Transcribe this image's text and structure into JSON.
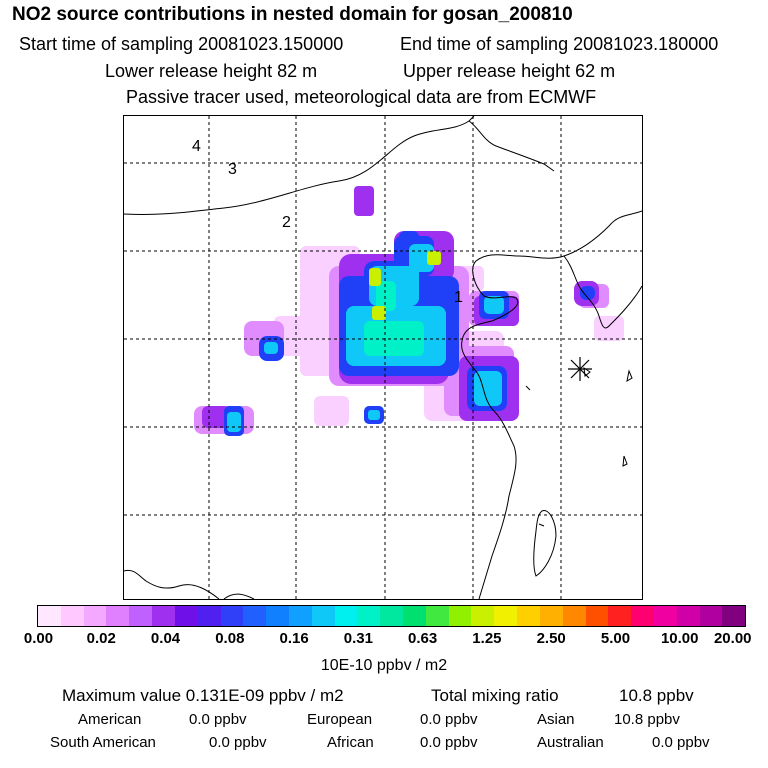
{
  "title": "NO2 source contributions in nested domain for gosan_200810",
  "header": {
    "start_label": "Start time of sampling 20081023.150000",
    "end_label": "End time of sampling 20081023.180000",
    "lower_label": "Lower release height   82 m",
    "upper_label": "Upper release height   62 m",
    "note": "Passive tracer used, meteorological data are from ECMWF"
  },
  "map": {
    "markers": [
      "4",
      "3",
      "2",
      "1"
    ],
    "station_symbol": "*"
  },
  "legend": {
    "colors": [
      "#ffe8ff",
      "#ffc8ff",
      "#f4a8ff",
      "#e080ff",
      "#c060ff",
      "#a030f0",
      "#7010e8",
      "#5020f0",
      "#3040f8",
      "#2060ff",
      "#1080ff",
      "#10a0ff",
      "#10c8f8",
      "#00f0f0",
      "#00f0c8",
      "#00e8a0",
      "#00e070",
      "#40e840",
      "#90f000",
      "#c8f000",
      "#f0f000",
      "#ffd000",
      "#ffb000",
      "#ff8800",
      "#ff5000",
      "#ff2020",
      "#ff0070",
      "#f000a0",
      "#d000a8",
      "#b000a0",
      "#800080"
    ],
    "ticks": [
      "0.00",
      "0.02",
      "0.04",
      "0.08",
      "0.16",
      "0.31",
      "0.63",
      "1.25",
      "2.50",
      "5.00",
      "10.00",
      "20.00"
    ],
    "unit": "10E-10 ppbv / m2"
  },
  "stats": {
    "max_label": "Maximum value  0.131E-09 ppbv / m2",
    "total_label": "Total mixing ratio",
    "total_value": "10.8 ppbv"
  },
  "contributions": [
    {
      "name": "American",
      "value": "0.0 ppbv"
    },
    {
      "name": "European",
      "value": "0.0 ppbv"
    },
    {
      "name": "Asian",
      "value": "10.8 ppbv"
    },
    {
      "name": "South American",
      "value": "0.0 ppbv"
    },
    {
      "name": "African",
      "value": "0.0 ppbv"
    },
    {
      "name": "Australian",
      "value": "0.0 ppbv"
    }
  ]
}
